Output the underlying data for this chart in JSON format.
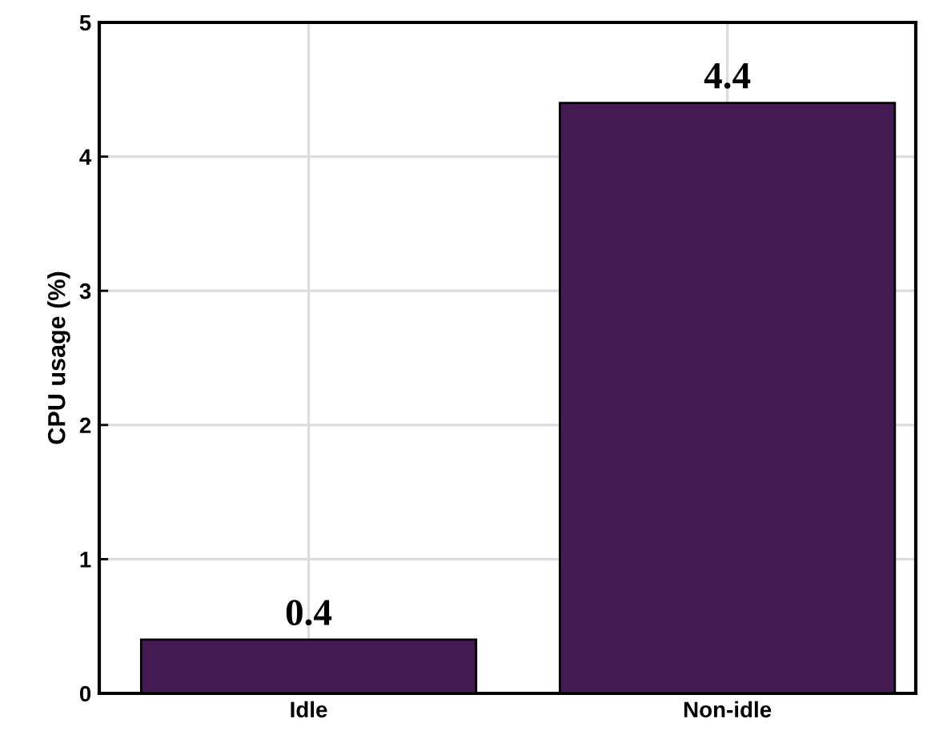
{
  "chart_data": {
    "type": "bar",
    "ylabel": "CPU usage (%)",
    "categories": [
      "Idle",
      "Non-idle"
    ],
    "values": [
      0.4,
      4.4
    ],
    "color": "#441a52",
    "ylim": [
      0,
      5
    ],
    "yticks": [
      0,
      1,
      2,
      3,
      4,
      5
    ],
    "grid": true,
    "data_labels": true
  }
}
